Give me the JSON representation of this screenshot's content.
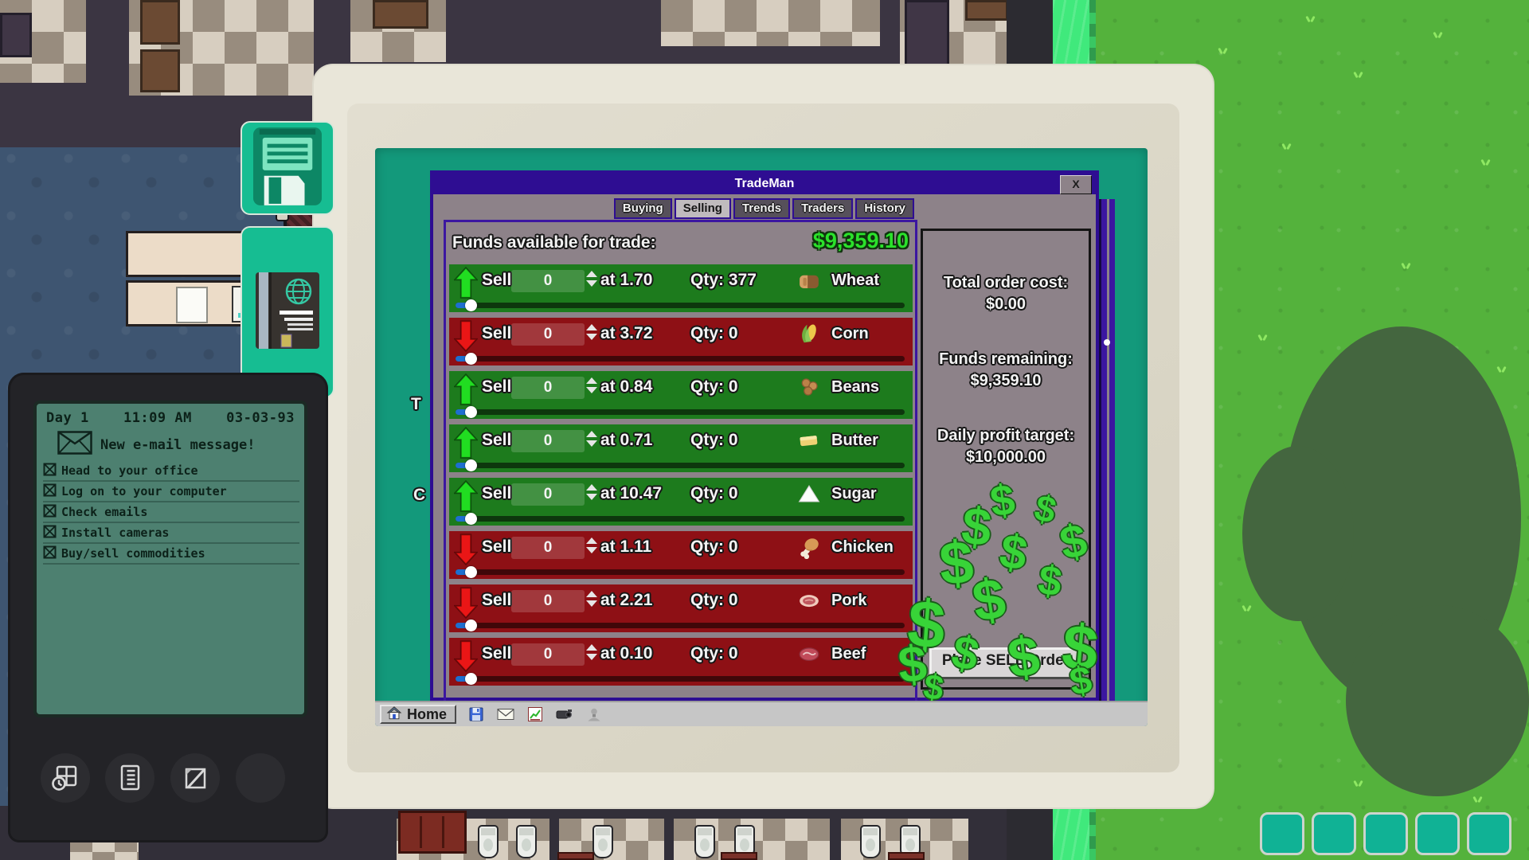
{
  "hud": {
    "hotbar_slots": 5
  },
  "quest_items": {
    "panel1_icon": "floppy-disk",
    "panel2_icon": "trade-handbook"
  },
  "pda": {
    "day": "Day 1",
    "time": "11:09 AM",
    "date": "03-03-93",
    "notification": "New e-mail message!",
    "tasks": [
      {
        "label": "Head to your office",
        "checked": true
      },
      {
        "label": "Log on to your computer",
        "checked": true
      },
      {
        "label": "Check emails",
        "checked": true
      },
      {
        "label": "Install cameras",
        "checked": true
      },
      {
        "label": "Buy/sell commodities",
        "checked": true
      }
    ]
  },
  "computer": {
    "desktop_fragments": [
      "T",
      "C"
    ],
    "taskbar": {
      "home_label": "Home",
      "icons": [
        "floppy-disk-icon",
        "mail-icon",
        "stocks-icon",
        "camera-icon",
        "user-icon"
      ]
    },
    "window": {
      "title": "TradeMan",
      "close_label": "X",
      "tabs": [
        {
          "label": "Buying",
          "active": false
        },
        {
          "label": "Selling",
          "active": true
        },
        {
          "label": "Trends",
          "active": false
        },
        {
          "label": "Traders",
          "active": false
        },
        {
          "label": "History",
          "active": false
        }
      ],
      "funds_label": "Funds available for trade:",
      "funds_value": "$9,359.10",
      "action_label": "Sell",
      "rows": [
        {
          "commodity": "Wheat",
          "icon": "bread",
          "trend": "up",
          "amount": "0",
          "price": "at 1.70",
          "qty": "Qty: 377"
        },
        {
          "commodity": "Corn",
          "icon": "corn",
          "trend": "down",
          "amount": "0",
          "price": "at 3.72",
          "qty": "Qty: 0"
        },
        {
          "commodity": "Beans",
          "icon": "beans",
          "trend": "up",
          "amount": "0",
          "price": "at 0.84",
          "qty": "Qty: 0"
        },
        {
          "commodity": "Butter",
          "icon": "butter",
          "trend": "up",
          "amount": "0",
          "price": "at 0.71",
          "qty": "Qty: 0"
        },
        {
          "commodity": "Sugar",
          "icon": "sugar",
          "trend": "up",
          "amount": "0",
          "price": "at 10.47",
          "qty": "Qty: 0"
        },
        {
          "commodity": "Chicken",
          "icon": "chicken",
          "trend": "down",
          "amount": "0",
          "price": "at 1.11",
          "qty": "Qty: 0"
        },
        {
          "commodity": "Pork",
          "icon": "pork",
          "trend": "down",
          "amount": "0",
          "price": "at 2.21",
          "qty": "Qty: 0"
        },
        {
          "commodity": "Beef",
          "icon": "beef",
          "trend": "down",
          "amount": "0",
          "price": "at 0.10",
          "qty": "Qty: 0"
        }
      ],
      "summary": {
        "total_cost_label": "Total order cost:",
        "total_cost_value": "$0.00",
        "funds_remaining_label": "Funds remaining:",
        "funds_remaining_value": "$9,359.10",
        "profit_target_label": "Daily profit target:",
        "profit_target_value": "$10,000.00",
        "place_order_label": "Place SELL Order",
        "money_symbol": "$"
      }
    }
  },
  "colors": {
    "row_up": "#1d7b1d",
    "row_down": "#8e1015",
    "arrow_up": "#21dd21",
    "arrow_down": "#ea1616",
    "money_green": "#2be22b",
    "screen_teal": "#13997b",
    "window_purple": "#2e0d92",
    "panel_gray": "#8d8289",
    "quest_panel_teal": "#16bd92",
    "grass_green": "#54b23c"
  }
}
